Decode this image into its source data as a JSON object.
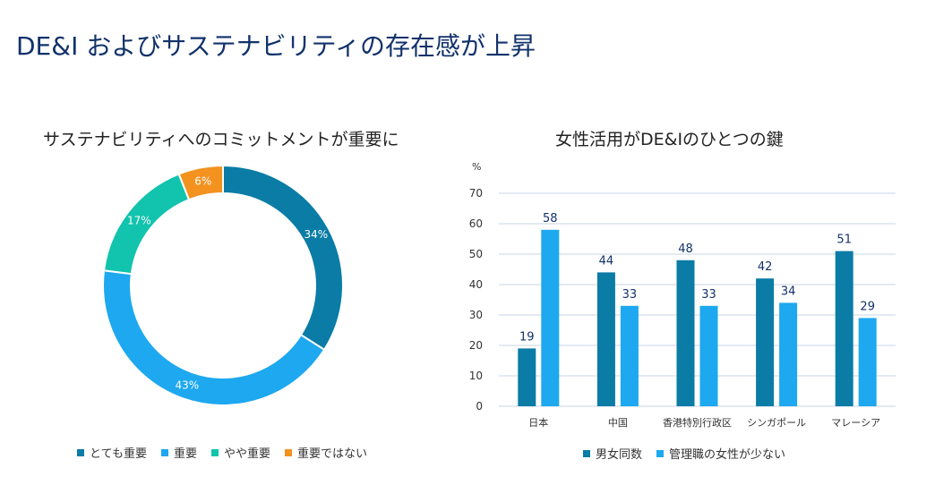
{
  "page": {
    "title": "DE&I およびサステナビリティの存在感が上昇"
  },
  "chart_data": [
    {
      "type": "pie",
      "variant": "donut",
      "title": "サステナビリティへのコミットメントが重要に",
      "categories": [
        "とても重要",
        "重要",
        "やや重要",
        "重要ではない"
      ],
      "values": [
        34,
        43,
        17,
        6
      ],
      "value_labels": [
        "34%",
        "43%",
        "17%",
        "6%"
      ],
      "colors": [
        "#0a7ca6",
        "#1da8f0",
        "#12c3ad",
        "#f3921f"
      ],
      "legend_position": "bottom"
    },
    {
      "type": "bar",
      "title": "女性活用がDE&Iのひとつの鍵",
      "ylabel": "%",
      "categories": [
        "日本",
        "中国",
        "香港特別行政区",
        "シンガポール",
        "マレーシア"
      ],
      "series": [
        {
          "name": "男女同数",
          "values": [
            19,
            44,
            48,
            42,
            51
          ],
          "color": "#0a7ca6"
        },
        {
          "name": "管理職の女性が少ない",
          "values": [
            58,
            33,
            33,
            34,
            29
          ],
          "color": "#1da8f0"
        }
      ],
      "ylim": [
        0,
        70
      ],
      "yticks": [
        0,
        10,
        20,
        30,
        40,
        50,
        60,
        70
      ],
      "grid": true,
      "legend_position": "bottom"
    }
  ]
}
